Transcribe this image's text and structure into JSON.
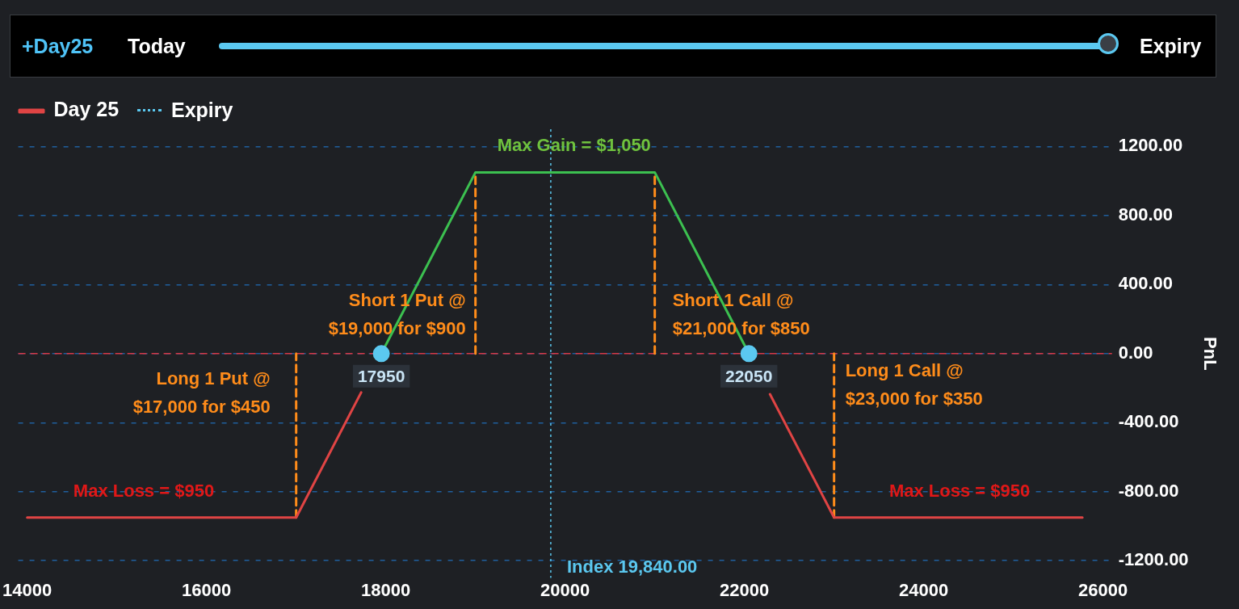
{
  "chart_data": {
    "type": "line",
    "ylabel": "PnL",
    "xlim": [
      13900,
      26100
    ],
    "xticks": [
      14000,
      16000,
      18000,
      20000,
      22000,
      24000,
      26000
    ],
    "ylim": [
      -1300,
      1300
    ],
    "yticks": [
      {
        "value": -1200,
        "label": "-1200.00"
      },
      {
        "value": -800,
        "label": "-800.00"
      },
      {
        "value": -400,
        "label": "-400.00"
      },
      {
        "value": 0,
        "label": "0.00"
      },
      {
        "value": 400,
        "label": "400.00"
      },
      {
        "value": 800,
        "label": "800.00"
      },
      {
        "value": 1200,
        "label": "1200.00"
      }
    ],
    "grid": "y",
    "legend": "top left",
    "series": [
      {
        "name": "Day 25",
        "type": "line",
        "color": "#e04444",
        "x": [
          14000,
          17000,
          17725,
          20000,
          22285,
          23000,
          25770
        ],
        "values": [
          -950,
          -950,
          -225,
          null,
          -235,
          -950,
          -950
        ]
      },
      {
        "type": "line",
        "color": "#3cc050",
        "x": [
          17950,
          19000,
          21000,
          22050
        ],
        "values": [
          0,
          1050,
          1050,
          0
        ]
      },
      {
        "type": "line",
        "color": "#ff8c1a",
        "line_style": "dashed",
        "x": [
          17000,
          17000
        ],
        "values": [
          -950,
          0
        ]
      },
      {
        "type": "line",
        "color": "#ff8c1a",
        "line_style": "dashed",
        "x": [
          19000,
          19000
        ],
        "values": [
          0,
          1050
        ]
      },
      {
        "type": "line",
        "color": "#ff8c1a",
        "line_style": "dashed",
        "x": [
          21000,
          21000
        ],
        "values": [
          0,
          1050
        ]
      },
      {
        "type": "line",
        "color": "#ff8c1a",
        "line_style": "dashed",
        "x": [
          23000,
          23000
        ],
        "values": [
          -950,
          0
        ]
      },
      {
        "type": "scatter",
        "color": "#5bc8f0",
        "marker": "circle",
        "x": [
          17950,
          22050
        ],
        "values": [
          0,
          0
        ]
      }
    ],
    "ref_lines": [
      {
        "axis": "y",
        "value": 0,
        "color": "#d83a4a",
        "line_style": "dashed"
      },
      {
        "axis": "x",
        "value": 19840,
        "label": "Index 19,840.00",
        "color": "#5bc8f0",
        "line_style": "dotted"
      }
    ],
    "annotations": [
      "+Day25",
      "Today",
      "Expiry",
      "Expiry",
      {
        "text": "Max Gain = $1,050",
        "x": 20100,
        "y": 1050
      },
      {
        "text": "Short 1 Put @\n$19,000 for $900",
        "x": 19000,
        "y": 0
      },
      {
        "text": "Short 1 Call @\n$21,000 for $850",
        "x": 21000,
        "y": 0
      },
      {
        "text": "Long 1 Put @\n$17,000 for $450",
        "x": 17000,
        "y": 0
      },
      {
        "text": "Long 1 Call @\n$23,000 for $350",
        "x": 23000,
        "y": 0
      },
      {
        "text": "Max Loss = $950",
        "x": 15300,
        "y": -950
      },
      {
        "text": "Max Loss = $950",
        "x": 24400,
        "y": -950
      },
      {
        "text": "17950",
        "x": 17950,
        "y": 0
      },
      {
        "text": "22050",
        "x": 22050,
        "y": 0
      }
    ]
  }
}
